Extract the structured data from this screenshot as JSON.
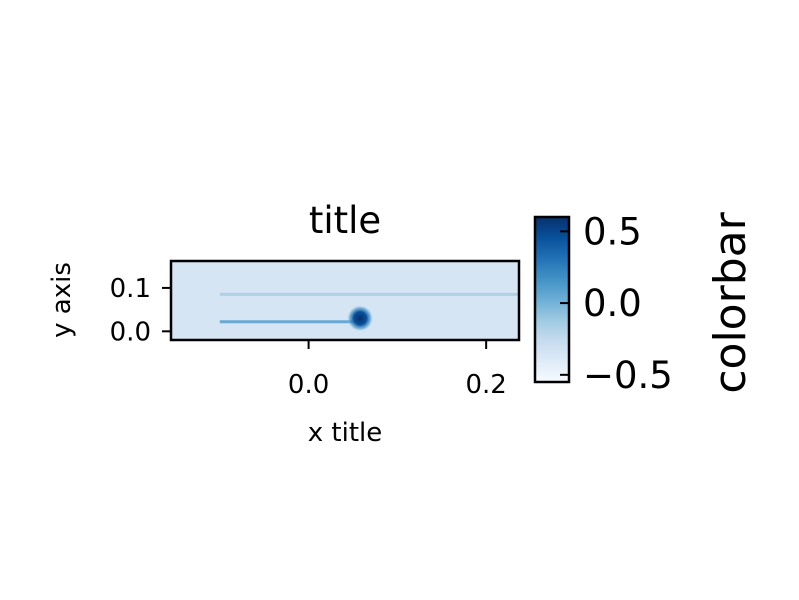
{
  "chart_data": {
    "type": "heatmap",
    "title": "title",
    "xlabel": "x title",
    "ylabel": "y axis",
    "xlim": [
      -0.155,
      0.237
    ],
    "ylim": [
      -0.02,
      0.162
    ],
    "x_ticks": [
      {
        "value": 0.0,
        "label": "0.0"
      },
      {
        "value": 0.2,
        "label": "0.2"
      }
    ],
    "y_ticks": [
      {
        "value": 0.0,
        "label": "0.0"
      },
      {
        "value": 0.1,
        "label": "0.1"
      }
    ],
    "grid": false,
    "colormap": "Blues",
    "colorbar": {
      "label": "colorbar",
      "range": [
        -0.55,
        0.6
      ],
      "ticks": [
        {
          "value": 0.5,
          "label": "0.5"
        },
        {
          "value": 0.0,
          "label": "0.0"
        },
        {
          "value": -0.5,
          "label": "−0.5"
        }
      ]
    },
    "background_level": -0.35,
    "features": [
      {
        "kind": "horizontal-line",
        "y": 0.085,
        "x_from": -0.1,
        "x_to": 0.237,
        "level": -0.15
      },
      {
        "kind": "horizontal-line",
        "y": 0.022,
        "x_from": -0.1,
        "x_to": 0.05,
        "level": 0.1
      },
      {
        "kind": "blob",
        "x": 0.058,
        "y": 0.03,
        "level": 0.6
      }
    ]
  },
  "colors": {
    "low": "#f7fbff",
    "high": "#08306b"
  }
}
